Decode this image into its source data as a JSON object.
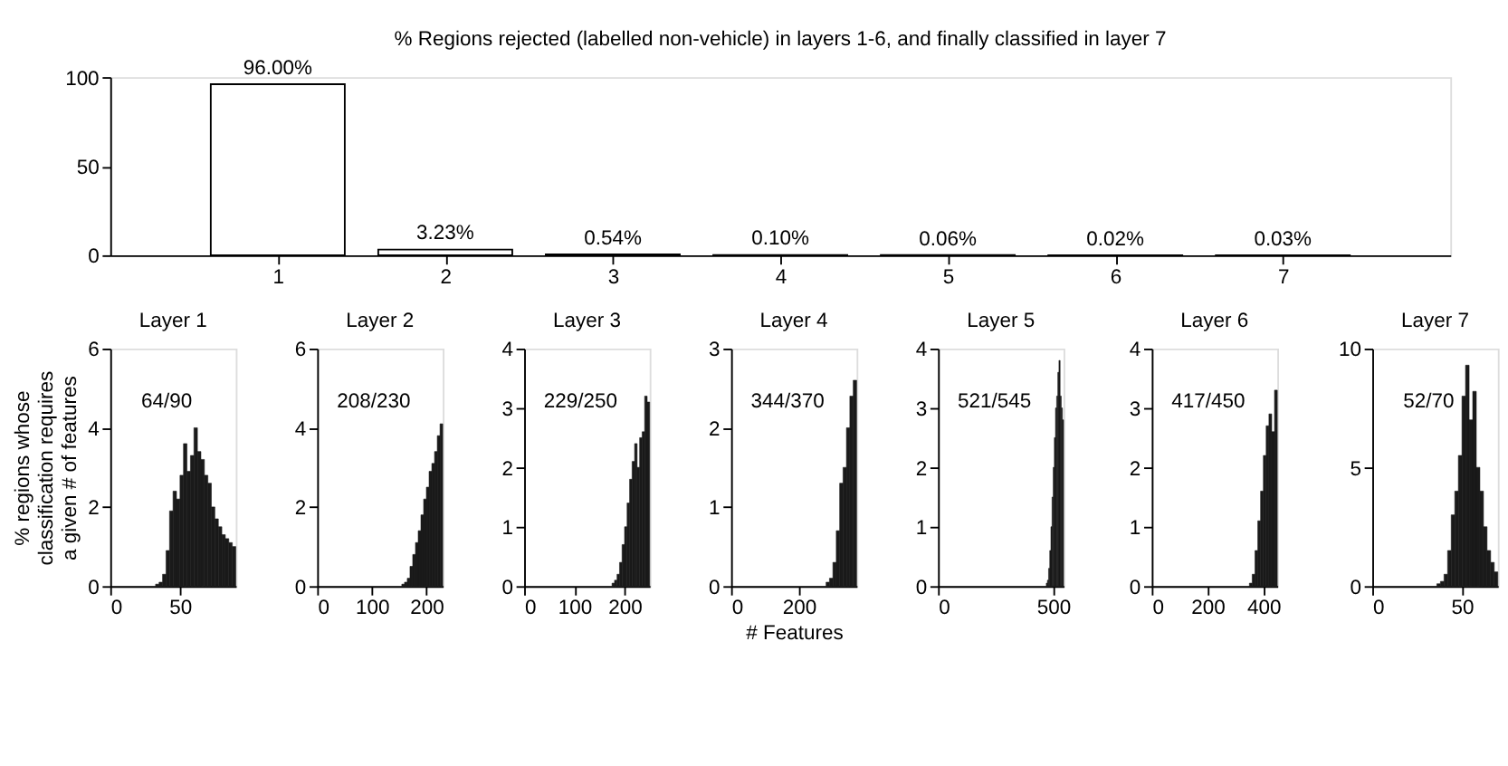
{
  "chart_data": [
    {
      "type": "bar",
      "title": "% Regions rejected (labelled non-vehicle) in layers 1-6, and finally classified in layer 7",
      "x": [
        1,
        2,
        3,
        4,
        5,
        6,
        7
      ],
      "values": [
        96.0,
        3.23,
        0.54,
        0.1,
        0.06,
        0.02,
        0.03
      ],
      "value_labels": [
        "96.00%",
        "3.23%",
        "0.54%",
        "0.10%",
        "0.06%",
        "0.02%",
        "0.03%"
      ],
      "color": "#ffffff",
      "xlim": [
        0,
        8
      ],
      "xticks": [
        1,
        2,
        3,
        4,
        5,
        6,
        7
      ],
      "ylim": [
        0,
        100
      ],
      "yticks": [
        0,
        50,
        100
      ],
      "grid": false
    },
    {
      "type": "histogram",
      "title": "Layer 1",
      "ylabel": "% regions whose classification requires a given # of features",
      "annotations": [
        "64/90"
      ],
      "color": "#1a1a1a",
      "xlim": [
        0,
        90
      ],
      "xticks": [
        0,
        50
      ],
      "ylim": [
        0,
        6
      ],
      "yticks": [
        0,
        2,
        4,
        6
      ],
      "bins": [
        32.5,
        35,
        37.5,
        40,
        42.5,
        45,
        47.5,
        50,
        52.5,
        55,
        57.5,
        60,
        62.5,
        65,
        67.5,
        70,
        72.5,
        75,
        77.5,
        80,
        82.5,
        85,
        87.5,
        90
      ],
      "values": [
        0.05,
        0.1,
        0.3,
        0.9,
        1.9,
        2.4,
        2.2,
        2.8,
        3.6,
        2.9,
        3.3,
        4.0,
        3.4,
        3.2,
        2.8,
        2.6,
        2.0,
        1.7,
        1.5,
        1.3,
        1.2,
        1.1,
        1.0
      ]
    },
    {
      "type": "histogram",
      "title": "Layer 2",
      "annotations": [
        "208/230"
      ],
      "color": "#1a1a1a",
      "xlim": [
        0,
        230
      ],
      "xticks": [
        0,
        100,
        200
      ],
      "ylim": [
        0,
        6
      ],
      "yticks": [
        0,
        2,
        4,
        6
      ],
      "bins": [
        155,
        160,
        165,
        170,
        175,
        180,
        185,
        190,
        195,
        200,
        205,
        210,
        215,
        220,
        225,
        230
      ],
      "values": [
        0.05,
        0.1,
        0.2,
        0.5,
        0.8,
        1.1,
        1.4,
        1.8,
        2.2,
        2.5,
        2.9,
        3.1,
        3.4,
        3.8,
        4.1
      ]
    },
    {
      "type": "histogram",
      "title": "Layer 3",
      "annotations": [
        "229/250"
      ],
      "color": "#1a1a1a",
      "xlim": [
        0,
        250
      ],
      "xticks": [
        0,
        100,
        200
      ],
      "ylim": [
        0,
        4
      ],
      "yticks": [
        0,
        1,
        2,
        3,
        4
      ],
      "bins": [
        175,
        180,
        185,
        190,
        195,
        200,
        205,
        210,
        215,
        220,
        225,
        230,
        235,
        240,
        245,
        250
      ],
      "values": [
        0.05,
        0.1,
        0.2,
        0.4,
        0.7,
        1.0,
        1.4,
        1.8,
        2.1,
        2.4,
        2.0,
        2.5,
        2.6,
        3.2,
        3.1
      ]
    },
    {
      "type": "histogram",
      "title": "Layer 4",
      "xlabel": "# Features",
      "annotations": [
        "344/370"
      ],
      "color": "#1a1a1a",
      "xlim": [
        0,
        370
      ],
      "xticks": [
        0,
        200
      ],
      "ylim": [
        0,
        3
      ],
      "yticks": [
        0,
        1,
        2,
        3
      ],
      "bins": [
        280,
        290,
        300,
        310,
        320,
        330,
        340,
        350,
        360,
        370
      ],
      "values": [
        0.05,
        0.1,
        0.3,
        0.7,
        1.3,
        1.5,
        2.0,
        2.4,
        2.6
      ]
    },
    {
      "type": "histogram",
      "title": "Layer 5",
      "annotations": [
        "521/545"
      ],
      "color": "#1a1a1a",
      "xlim": [
        0,
        545
      ],
      "xticks": [
        0,
        500
      ],
      "ylim": [
        0,
        4
      ],
      "yticks": [
        0,
        1,
        2,
        3,
        4
      ],
      "bins": [
        470,
        475,
        480,
        485,
        490,
        495,
        500,
        505,
        510,
        515,
        520,
        525,
        530,
        535,
        540,
        545
      ],
      "values": [
        0.05,
        0.1,
        0.3,
        0.6,
        1.0,
        1.5,
        2.0,
        2.5,
        3.0,
        3.2,
        3.6,
        3.8,
        3.2,
        3.0,
        2.8
      ]
    },
    {
      "type": "histogram",
      "title": "Layer 6",
      "annotations": [
        "417/450"
      ],
      "color": "#1a1a1a",
      "xlim": [
        0,
        450
      ],
      "xticks": [
        0,
        200,
        400
      ],
      "ylim": [
        0,
        4
      ],
      "yticks": [
        0,
        1,
        2,
        3,
        4
      ],
      "bins": [
        350,
        360,
        370,
        380,
        390,
        400,
        410,
        420,
        430,
        440,
        450
      ],
      "values": [
        0.05,
        0.2,
        0.6,
        1.1,
        1.6,
        2.2,
        2.7,
        2.9,
        2.6,
        3.3
      ]
    },
    {
      "type": "histogram",
      "title": "Layer 7",
      "annotations": [
        "52/70"
      ],
      "color": "#1a1a1a",
      "xlim": [
        0,
        70
      ],
      "xticks": [
        0,
        50
      ],
      "ylim": [
        0,
        10
      ],
      "yticks": [
        0,
        5,
        10
      ],
      "bins": [
        36,
        38,
        40,
        42,
        44,
        46,
        48,
        50,
        52,
        54,
        56,
        58,
        60,
        62,
        64,
        66,
        68,
        70
      ],
      "values": [
        0.1,
        0.2,
        0.5,
        1.5,
        3.0,
        4.0,
        5.5,
        8.0,
        9.3,
        7.0,
        8.2,
        5.0,
        4.0,
        2.5,
        1.5,
        1.0,
        0.6
      ]
    }
  ]
}
